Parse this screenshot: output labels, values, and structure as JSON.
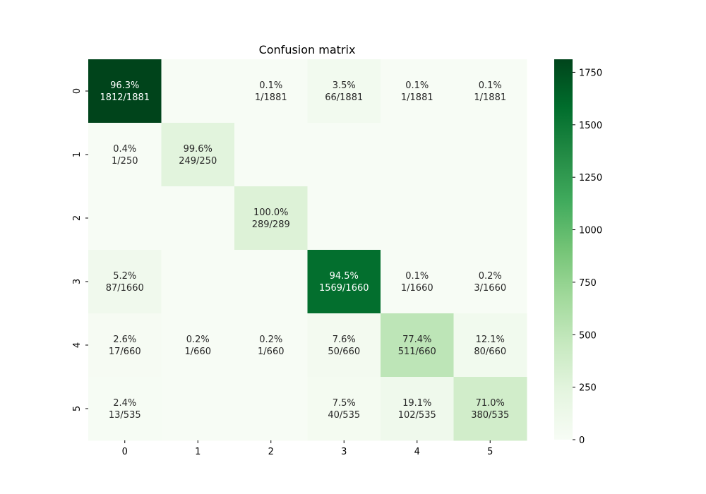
{
  "chart_data": {
    "type": "heatmap",
    "title": "Confusion matrix",
    "xlabel": "",
    "ylabel": "",
    "x_categories": [
      "0",
      "1",
      "2",
      "3",
      "4",
      "5"
    ],
    "y_categories": [
      "0",
      "1",
      "2",
      "3",
      "4",
      "5"
    ],
    "colormap": "Greens",
    "color_range": [
      0,
      1812
    ],
    "colorbar_ticks": [
      0,
      250,
      500,
      750,
      1000,
      1250,
      1500,
      1750
    ],
    "values": [
      [
        1812,
        0,
        1,
        66,
        1,
        1
      ],
      [
        1,
        249,
        0,
        0,
        0,
        0
      ],
      [
        0,
        0,
        289,
        0,
        0,
        0
      ],
      [
        87,
        0,
        0,
        1569,
        1,
        3
      ],
      [
        17,
        1,
        1,
        50,
        511,
        80
      ],
      [
        13,
        0,
        0,
        40,
        102,
        380
      ]
    ],
    "labels": [
      [
        [
          "96.3%",
          "1812/1881"
        ],
        null,
        [
          "0.1%",
          "1/1881"
        ],
        [
          "3.5%",
          "66/1881"
        ],
        [
          "0.1%",
          "1/1881"
        ],
        [
          "0.1%",
          "1/1881"
        ]
      ],
      [
        [
          "0.4%",
          "1/250"
        ],
        [
          "99.6%",
          "249/250"
        ],
        null,
        null,
        null,
        null
      ],
      [
        null,
        null,
        [
          "100.0%",
          "289/289"
        ],
        null,
        null,
        null
      ],
      [
        [
          "5.2%",
          "87/1660"
        ],
        null,
        null,
        [
          "94.5%",
          "1569/1660"
        ],
        [
          "0.1%",
          "1/1660"
        ],
        [
          "0.2%",
          "3/1660"
        ]
      ],
      [
        [
          "2.6%",
          "17/660"
        ],
        [
          "0.2%",
          "1/660"
        ],
        [
          "0.2%",
          "1/660"
        ],
        [
          "7.6%",
          "50/660"
        ],
        [
          "77.4%",
          "511/660"
        ],
        [
          "12.1%",
          "80/660"
        ]
      ],
      [
        [
          "2.4%",
          "13/535"
        ],
        null,
        null,
        [
          "7.5%",
          "40/535"
        ],
        [
          "19.1%",
          "102/535"
        ],
        [
          "71.0%",
          "380/535"
        ]
      ]
    ]
  }
}
